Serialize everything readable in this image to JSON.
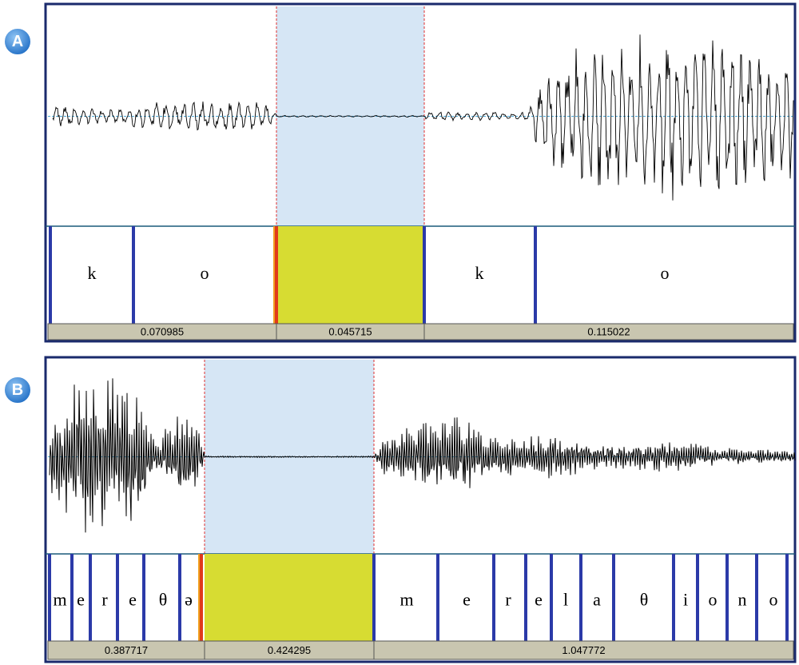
{
  "panels": [
    {
      "badge": "A",
      "segments": [
        "k",
        "o",
        "k",
        "o"
      ],
      "durations": [
        "0.070985",
        "0.045715",
        "0.115022"
      ]
    },
    {
      "badge": "B",
      "segments": [
        "m",
        "e",
        "r",
        "e",
        "θ",
        "ə",
        "m",
        "e",
        "r",
        "e",
        "l",
        "a",
        "θ",
        "i",
        "o",
        "n",
        "o"
      ],
      "durations": [
        "0.387717",
        "0.424295",
        "1.047772"
      ]
    }
  ]
}
